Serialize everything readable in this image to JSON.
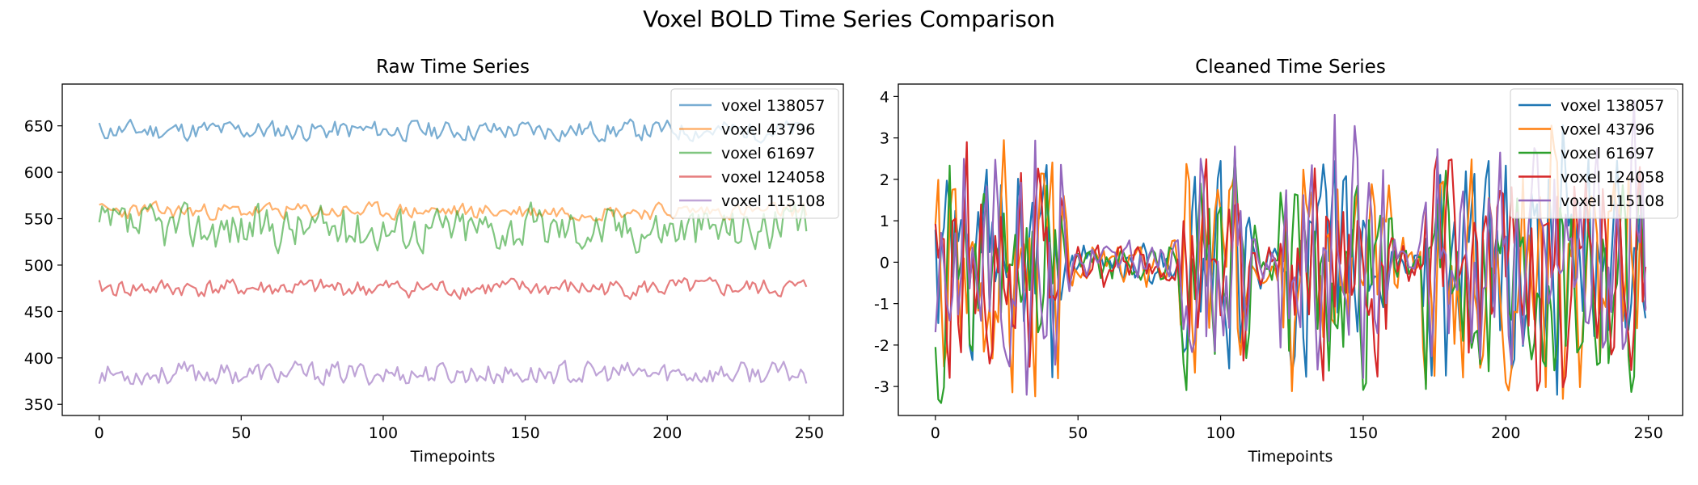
{
  "suptitle": "Voxel BOLD Time Series Comparison",
  "chart_data": [
    {
      "type": "line",
      "title": "Raw Time Series",
      "xlabel": "Timepoints",
      "ylabel": "",
      "xlim": [
        -13,
        262
      ],
      "ylim": [
        338,
        695
      ],
      "xticks": [
        0,
        50,
        100,
        150,
        200,
        250
      ],
      "yticks": [
        350,
        400,
        450,
        500,
        550,
        600,
        650
      ],
      "legend_position": "top-right",
      "line_alpha": 0.6,
      "series": [
        {
          "name": "voxel 138057",
          "color": "#1f77b4",
          "mean": 645,
          "amplitude": 10,
          "seed": 11
        },
        {
          "name": "voxel 43796",
          "color": "#ff7f0e",
          "mean": 558,
          "amplitude": 8,
          "seed": 23
        },
        {
          "name": "voxel 61697",
          "color": "#2ca02c",
          "mean": 540,
          "amplitude": 22,
          "seed": 37
        },
        {
          "name": "voxel 124058",
          "color": "#d62728",
          "mean": 475,
          "amplitude": 9,
          "seed": 41
        },
        {
          "name": "voxel 115108",
          "color": "#9467bd",
          "mean": 383,
          "amplitude": 11,
          "seed": 53
        }
      ]
    },
    {
      "type": "line",
      "title": "Cleaned Time Series",
      "xlabel": "Timepoints",
      "ylabel": "",
      "xlim": [
        -13,
        262
      ],
      "ylim": [
        -3.7,
        4.3
      ],
      "xticks": [
        0,
        50,
        100,
        150,
        200,
        250
      ],
      "yticks": [
        -3,
        -2,
        -1,
        0,
        1,
        2,
        3,
        4
      ],
      "legend_position": "top-right",
      "line_alpha": 1,
      "series": [
        {
          "name": "voxel 138057",
          "color": "#1f77b4",
          "seed": 61,
          "min": -3.2,
          "max": 3.3
        },
        {
          "name": "voxel 43796",
          "color": "#ff7f0e",
          "seed": 67,
          "min": -3.3,
          "max": 3.3
        },
        {
          "name": "voxel 61697",
          "color": "#2ca02c",
          "seed": 71,
          "min": -3.4,
          "max": 2.6
        },
        {
          "name": "voxel 124058",
          "color": "#d62728",
          "seed": 79,
          "min": -3.1,
          "max": 2.9
        },
        {
          "name": "voxel 115108",
          "color": "#9467bd",
          "seed": 83,
          "min": -3.2,
          "max": 3.9
        }
      ],
      "n_points": 250
    }
  ]
}
